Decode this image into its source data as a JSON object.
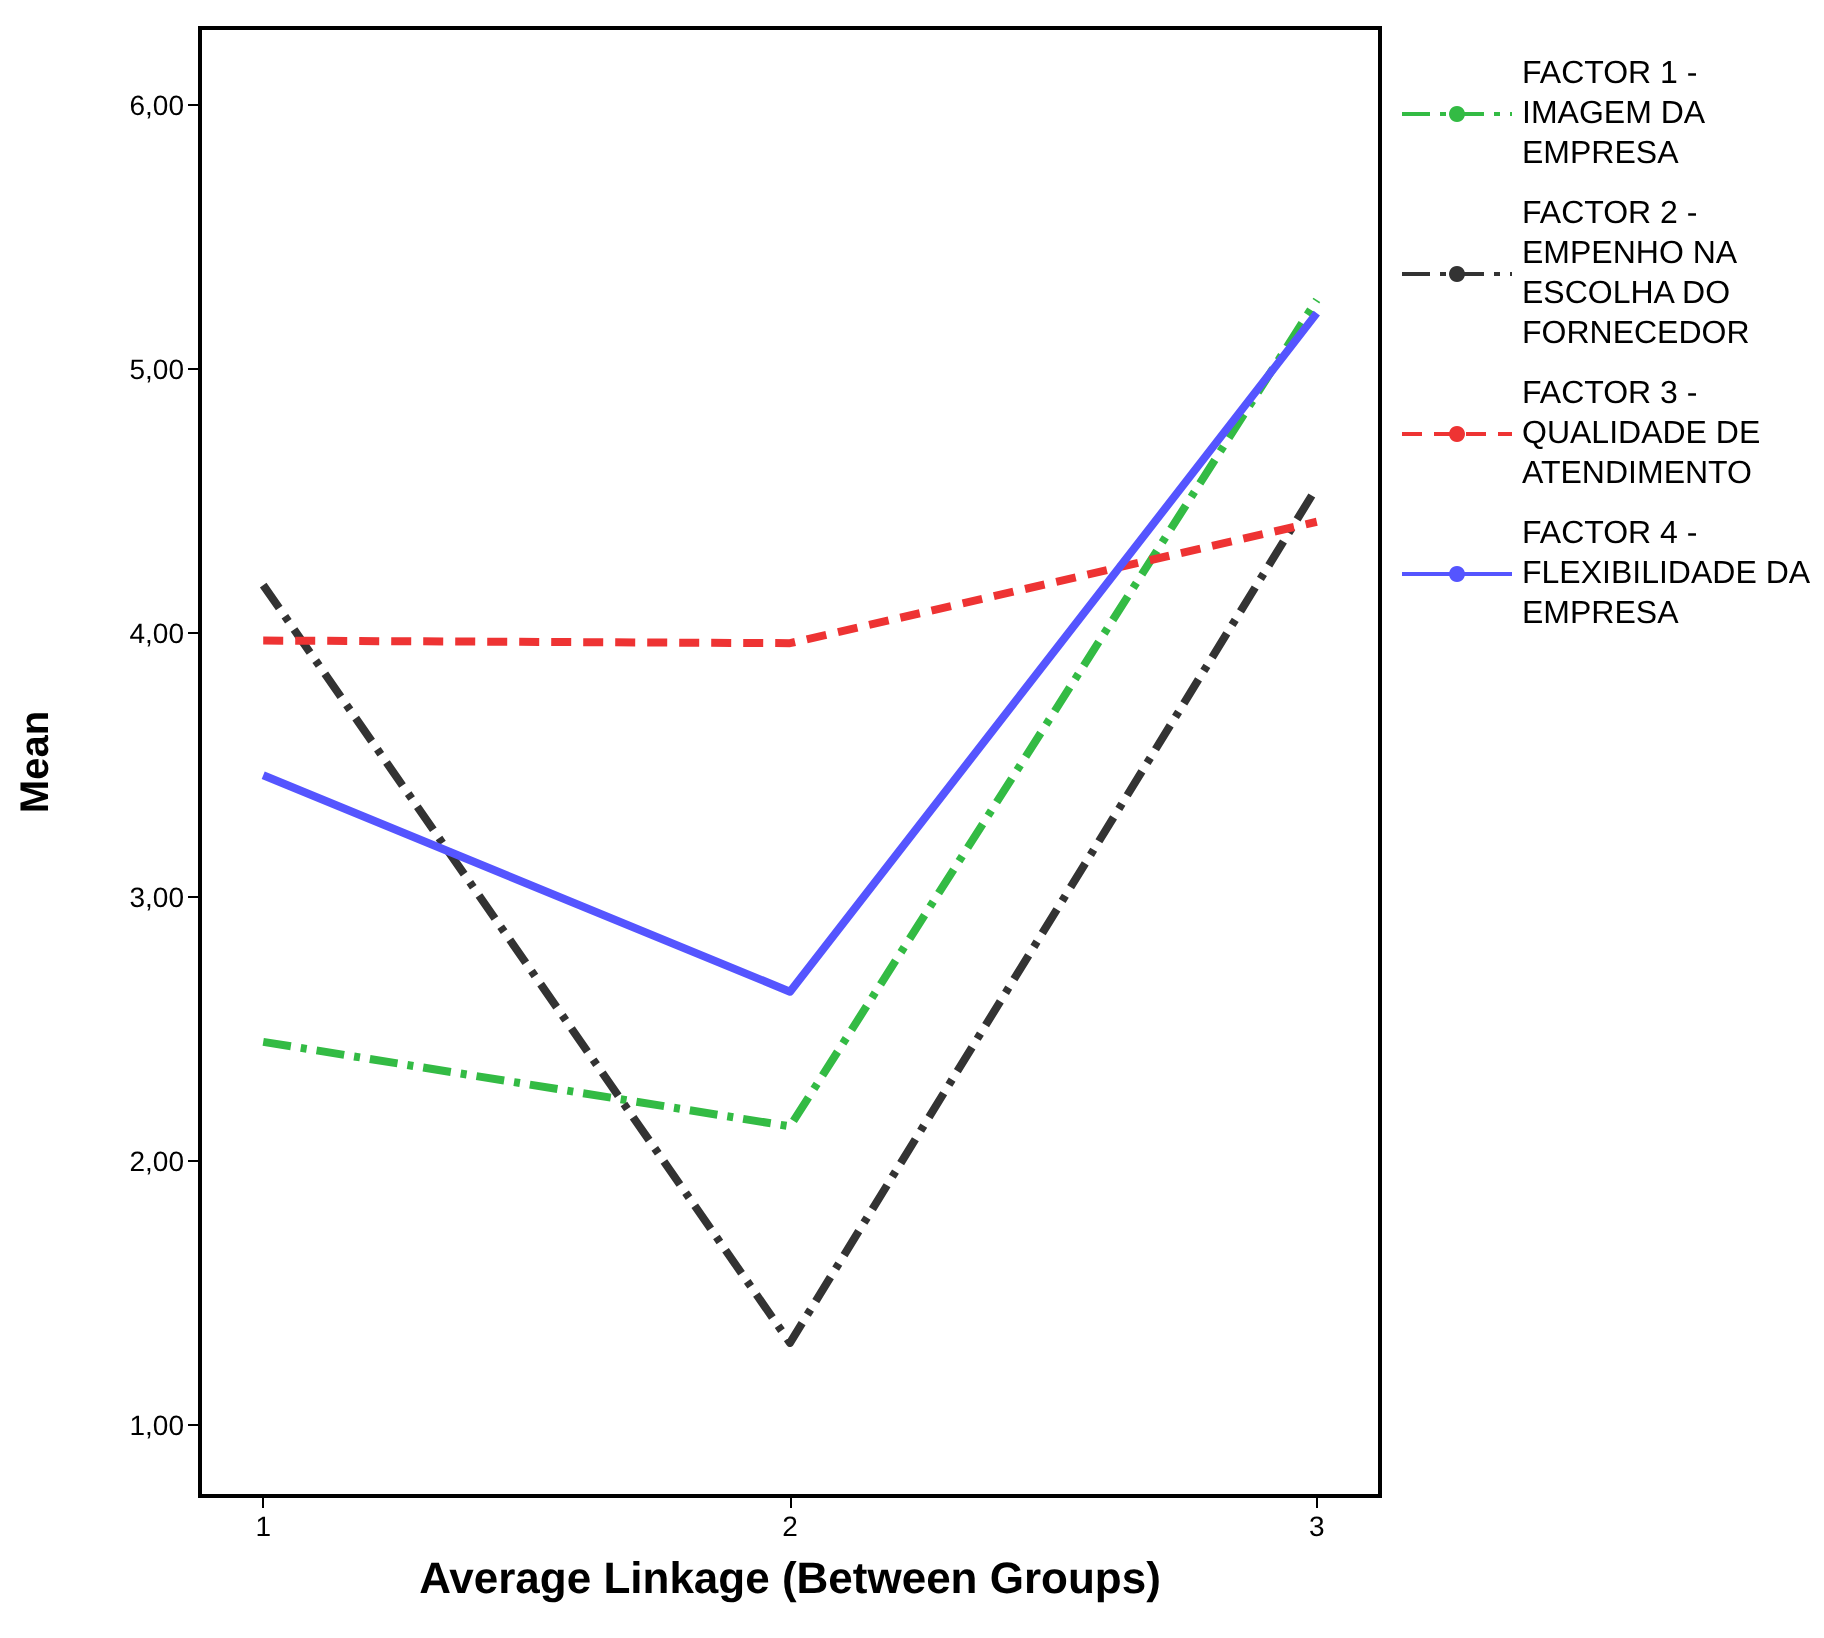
{
  "chart_data": {
    "type": "line",
    "xlabel": "Average Linkage (Between Groups)",
    "ylabel": "Mean",
    "x": [
      1,
      2,
      3
    ],
    "xlim": [
      0.88,
      3.12
    ],
    "xticks": [
      1,
      2,
      3
    ],
    "ylim": [
      0.73,
      6.29
    ],
    "yticks": [
      {
        "value": 1,
        "label": "1,00"
      },
      {
        "value": 2,
        "label": "2,00"
      },
      {
        "value": 3,
        "label": "3,00"
      },
      {
        "value": 4,
        "label": "4,00"
      },
      {
        "value": 5,
        "label": "5,00"
      },
      {
        "value": 6,
        "label": "6,00"
      }
    ],
    "grid": false,
    "legend": "right",
    "marker": "none",
    "series": [
      {
        "name": "FACTOR 1 - IMAGEM DA EMPRESA",
        "color": "#33bb44",
        "line_style": "dashdot",
        "values": [
          2.45,
          2.13,
          5.26
        ]
      },
      {
        "name": "FACTOR 2 - EMPENHO NA ESCOLHA DO FORNECEDOR",
        "color": "#333333",
        "line_style": "dashdot",
        "values": [
          4.18,
          1.31,
          4.55
        ]
      },
      {
        "name": "FACTOR 3 - QUALIDADE DE ATENDIMENTO",
        "color": "#ee3333",
        "line_style": "dashed",
        "values": [
          3.97,
          3.96,
          4.42
        ]
      },
      {
        "name": "FACTOR 4 - FLEXIBILIDADE DA EMPRESA",
        "color": "#5555ff",
        "line_style": "solid",
        "values": [
          3.46,
          2.64,
          5.21
        ]
      }
    ]
  }
}
